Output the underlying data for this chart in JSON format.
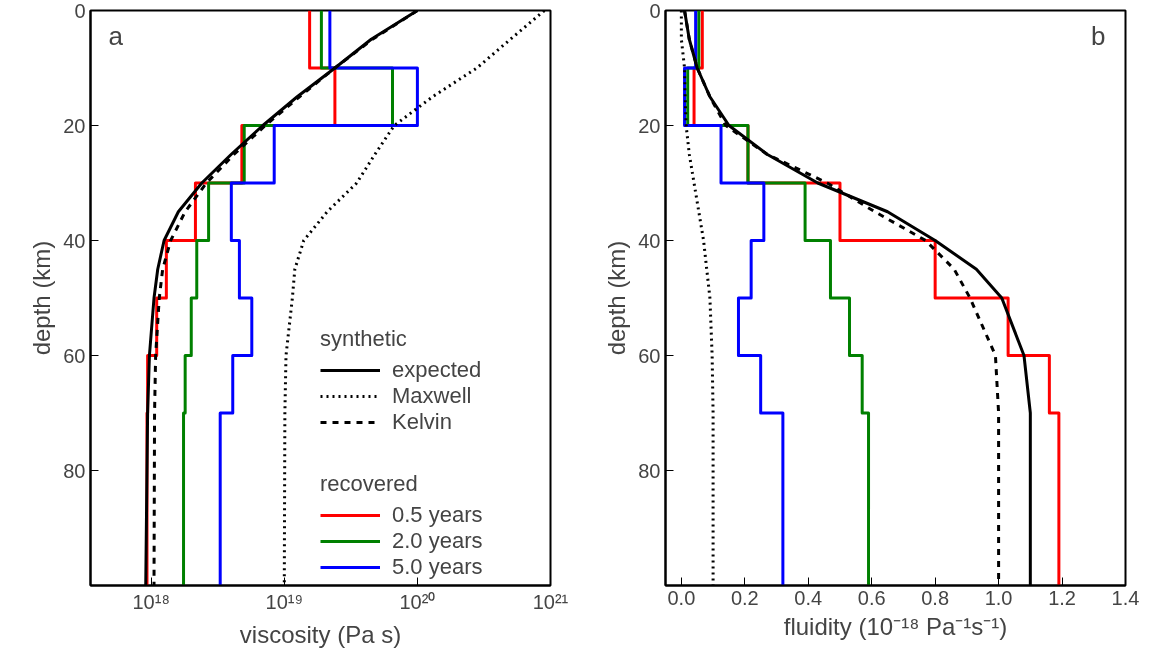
{
  "chart_data": [
    {
      "type": "line",
      "title": "a",
      "orientation": "horizontal",
      "log": "x",
      "xlabel": "viscosity (Pa s)",
      "ylabel": "depth (km)",
      "xlim": [
        3.5e+17,
        1e+21
      ],
      "xticks": [
        {
          "value": 1e+18,
          "label": "10¹⁸"
        },
        {
          "value": 1e+19,
          "label": "10¹⁹"
        },
        {
          "value": 1e+20,
          "label": "10²⁰"
        },
        {
          "value": 1e+21,
          "label": "10²¹"
        }
      ],
      "ylim": [
        100,
        0
      ],
      "yticks": [
        0,
        20,
        40,
        60,
        80
      ],
      "grid": false,
      "legend": "bottom right",
      "legend_title": [
        "synthetic",
        "recovered"
      ],
      "series": [
        {
          "type": "step",
          "name": "0.5 years",
          "color": "#ff0000",
          "x": [
            0,
            10,
            20,
            30,
            40,
            50,
            60,
            70,
            100
          ],
          "values": [
            1.55e+19,
            2.4e+19,
            4.8e+18,
            2.15e+18,
            1.3e+18,
            1.1e+18,
            9.4e+17,
            9.3e+17,
            9.3e+17
          ]
        },
        {
          "type": "step",
          "name": "2.0 years",
          "color": "#008000",
          "x": [
            0,
            10,
            20,
            30,
            40,
            50,
            60,
            70,
            100
          ],
          "values": [
            1.9e+19,
            6.5e+19,
            5e+18,
            2.7e+18,
            2.2e+18,
            2e+18,
            1.8e+18,
            1.75e+18,
            1.75e+18
          ]
        },
        {
          "type": "step",
          "name": "5.0 years",
          "color": "#0000ff",
          "x": [
            0,
            10,
            20,
            30,
            40,
            50,
            60,
            70,
            100
          ],
          "values": [
            2.2e+19,
            1e+20,
            8.4e+18,
            4e+18,
            4.6e+18,
            5.7e+18,
            4.1e+18,
            3.3e+18,
            3.3e+18
          ]
        },
        {
          "name": "expected",
          "color": "#000000",
          "line_style": "solid",
          "x": [
            0,
            5,
            10,
            15,
            20,
            25,
            30,
            35,
            40,
            45,
            50,
            60,
            70,
            100
          ],
          "values": [
            1e+20,
            4.5e+19,
            2.4e+19,
            1.25e+19,
            6.9e+18,
            4e+18,
            2.4e+18,
            1.6e+18,
            1.25e+18,
            1.12e+18,
            1.05e+18,
            9.7e+17,
            9.4e+17,
            9.1e+17
          ]
        },
        {
          "name": "Maxwell",
          "color": "#000000",
          "line_style": "dotted",
          "x": [
            0,
            5,
            10,
            15,
            20,
            25,
            30,
            35,
            40,
            45,
            50,
            60,
            70,
            100
          ],
          "values": [
            9e+20,
            5e+20,
            2.8e+20,
            1.3e+20,
            6.7e+19,
            4.8e+19,
            3.5e+19,
            2.1e+19,
            1.4e+19,
            1.2e+19,
            1.15e+19,
            1.03e+19,
            1.01e+19,
            1e+19
          ]
        },
        {
          "name": "Kelvin",
          "color": "#000000",
          "line_style": "dashed",
          "x": [
            0,
            5,
            10,
            15,
            20,
            25,
            30,
            35,
            40,
            45,
            50,
            60,
            70,
            100
          ],
          "values": [
            1e+20,
            4.6e+19,
            2.4e+19,
            1.3e+19,
            7.2e+18,
            4.2e+18,
            2.6e+18,
            1.8e+18,
            1.4e+18,
            1.22e+18,
            1.15e+18,
            1.08e+18,
            1.06e+18,
            1.05e+18
          ]
        }
      ]
    },
    {
      "type": "line",
      "title": "b",
      "orientation": "horizontal",
      "xlabel": "fluidity (10⁻¹⁸ Pa⁻¹s⁻¹)",
      "ylabel": "depth (km)",
      "xlim": [
        -0.05,
        1.4
      ],
      "xticks": [
        {
          "value": 0,
          "label": "0.0"
        },
        0.2,
        0.4,
        0.6,
        0.8,
        {
          "value": 1,
          "label": "1.0"
        },
        1.2,
        1.4
      ],
      "ylim": [
        100,
        0
      ],
      "yticks": [
        0,
        20,
        40,
        60,
        80
      ],
      "grid": false,
      "series": [
        {
          "type": "step",
          "color": "#ff0000",
          "x": [
            0,
            10,
            20,
            30,
            40,
            50,
            60,
            70,
            100
          ],
          "values": [
            0.066,
            0.04,
            0.21,
            0.5,
            0.8,
            1.03,
            1.16,
            1.19,
            1.19
          ]
        },
        {
          "type": "step",
          "color": "#008000",
          "x": [
            0,
            10,
            20,
            30,
            40,
            50,
            60,
            70,
            100
          ],
          "values": [
            0.055,
            0.02,
            0.21,
            0.39,
            0.47,
            0.53,
            0.57,
            0.59,
            0.59
          ]
        },
        {
          "type": "step",
          "color": "#0000ff",
          "x": [
            0,
            10,
            20,
            30,
            40,
            50,
            60,
            70,
            100
          ],
          "values": [
            0.045,
            0.01,
            0.125,
            0.26,
            0.22,
            0.18,
            0.25,
            0.32,
            0.32
          ]
        },
        {
          "color": "#000000",
          "line_style": "solid",
          "x": [
            0,
            5,
            10,
            15,
            20,
            25,
            30,
            35,
            40,
            45,
            50,
            60,
            70,
            100
          ],
          "values": [
            0.01,
            0.025,
            0.05,
            0.09,
            0.15,
            0.27,
            0.43,
            0.65,
            0.8,
            0.93,
            1.01,
            1.08,
            1.1,
            1.1
          ]
        },
        {
          "color": "#000000",
          "line_style": "dotted",
          "x": [
            0,
            5,
            10,
            15,
            20,
            25,
            30,
            35,
            40,
            45,
            50,
            60,
            70,
            100
          ],
          "values": [
            0.0,
            0.0,
            0.01,
            0.012,
            0.015,
            0.025,
            0.04,
            0.055,
            0.07,
            0.08,
            0.09,
            0.097,
            0.1,
            0.1
          ]
        },
        {
          "color": "#000000",
          "line_style": "dashed",
          "x": [
            0,
            5,
            10,
            15,
            20,
            25,
            30,
            35,
            40,
            45,
            50,
            60,
            70,
            100
          ],
          "values": [
            0.01,
            0.025,
            0.05,
            0.09,
            0.14,
            0.27,
            0.46,
            0.61,
            0.77,
            0.86,
            0.91,
            0.99,
            1.0,
            1.0
          ]
        }
      ]
    }
  ]
}
